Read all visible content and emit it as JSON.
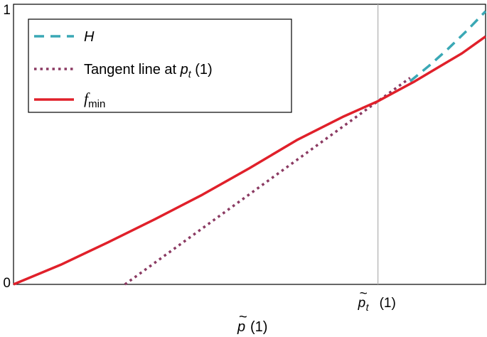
{
  "chart_data": {
    "type": "line",
    "xlabel": {
      "symbol": "p",
      "accent": "~",
      "suffix": "(1)"
    },
    "xlim": [
      0,
      1
    ],
    "ylim": [
      0,
      1
    ],
    "yticks": [
      {
        "value": 0,
        "label": "0"
      },
      {
        "value": 1,
        "label": "1"
      }
    ],
    "xticks": [
      {
        "value": 0.772,
        "symbol": "p",
        "accent": "~",
        "subscript": "t",
        "suffix": "(1)"
      }
    ],
    "vertical_reference_line": {
      "x": 0.772,
      "color": "#b0b0b0"
    },
    "grid": false,
    "legend": {
      "placement": "top-left",
      "entries": [
        {
          "series": "H",
          "text": "H",
          "italic": true,
          "subscript": "",
          "style": "dashed",
          "color": "#3aa8b5"
        },
        {
          "series": "tangent",
          "text": "Tangent line at ",
          "italic": false,
          "math": "p",
          "subscript": "t",
          "suffix": " (1)",
          "style": "dotted",
          "color": "#8b3a62"
        },
        {
          "series": "fmin",
          "text": "f",
          "italic": true,
          "subscript": "min",
          "style": "solid",
          "color": "#e0202a"
        }
      ]
    },
    "series": [
      {
        "name": "H",
        "style": "dashed",
        "color": "#3aa8b5",
        "x": [
          0.84,
          0.88,
          0.92,
          0.96,
          1.0
        ],
        "y": [
          0.725,
          0.78,
          0.84,
          0.905,
          0.975
        ]
      },
      {
        "name": "Tangent line at p_t (1)",
        "style": "dotted",
        "color": "#8b3a62",
        "x": [
          0.236,
          0.4,
          0.6,
          0.772,
          0.84
        ],
        "y": [
          0.0,
          0.2,
          0.444,
          0.654,
          0.737
        ]
      },
      {
        "name": "f_min",
        "style": "solid",
        "color": "#e0202a",
        "x": [
          0.0,
          0.1,
          0.2,
          0.3,
          0.4,
          0.5,
          0.6,
          0.7,
          0.772,
          0.85,
          0.9,
          0.95,
          1.0
        ],
        "y": [
          0.0,
          0.07,
          0.15,
          0.233,
          0.32,
          0.415,
          0.515,
          0.6,
          0.654,
          0.725,
          0.775,
          0.825,
          0.885
        ]
      }
    ]
  }
}
